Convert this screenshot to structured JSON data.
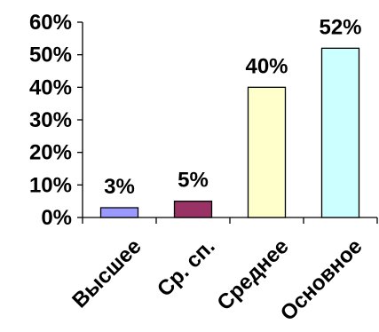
{
  "chart_data": {
    "type": "bar",
    "categories": [
      "Высшее",
      "Ср. сп.",
      "Среднее",
      "Основное"
    ],
    "values": [
      3,
      5,
      40,
      52
    ],
    "value_labels": [
      "3%",
      "5%",
      "40%",
      "52%"
    ],
    "colors": [
      "#9999ff",
      "#993366",
      "#ffffcc",
      "#ccffff"
    ],
    "y_tick_labels": [
      "0%",
      "10%",
      "20%",
      "30%",
      "40%",
      "50%",
      "60%"
    ],
    "y_ticks": [
      0,
      10,
      20,
      30,
      40,
      50,
      60
    ],
    "ylim": [
      0,
      60
    ],
    "grid": false,
    "legend": "none"
  }
}
